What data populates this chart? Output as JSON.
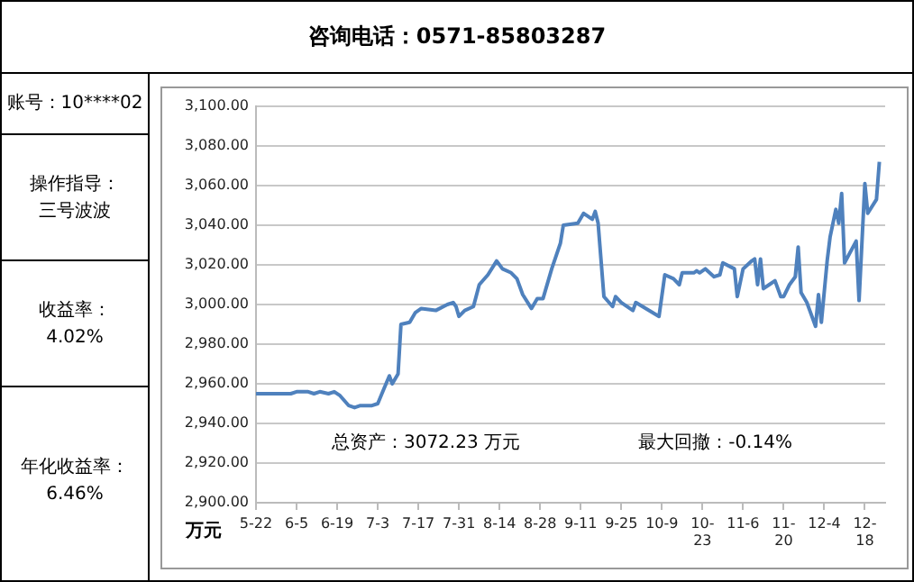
{
  "chart_data": {
    "type": "line",
    "title": "咨询电话：0571-85803287",
    "ylabel": "万元",
    "annotations": [
      "账号：10****02",
      "操作指导：",
      "三号波波",
      "收益率：",
      "4.02%",
      "年化收益率：",
      "6.46%",
      "总资产：3072.23 万元",
      "最大回撤：-0.14%"
    ],
    "x": [
      "--05-22",
      "--06-03",
      "--06-05",
      "--06-09",
      "--06-11",
      "--06-13",
      "--06-16",
      "--06-18",
      "--06-20",
      "--06-23",
      "--06-25",
      "--06-27",
      "--07-01",
      "--07-03",
      "--07-05",
      "--07-07",
      "--07-08",
      "--07-10",
      "--07-11",
      "--07-14",
      "--07-16",
      "--07-18",
      "--07-23",
      "--07-27",
      "--07-29",
      "--07-30",
      "--07-31",
      "--08-02",
      "--08-05",
      "--08-07",
      "--08-10",
      "--08-13",
      "--08-15",
      "--08-18",
      "--08-20",
      "--08-22",
      "--08-25",
      "--08-27",
      "--08-29",
      "--09-01",
      "--09-04",
      "--09-05",
      "--09-10",
      "--09-12",
      "--09-15",
      "--09-16",
      "--09-17",
      "--09-19",
      "--09-22",
      "--09-23",
      "--09-25",
      "--09-29",
      "--09-30",
      "--10-08",
      "--10-10",
      "--10-13",
      "--10-15",
      "--10-16",
      "--10-20",
      "--10-21",
      "--10-22",
      "--10-24",
      "--10-27",
      "--10-29",
      "--10-30",
      "--11-03",
      "--11-04",
      "--11-06",
      "--11-09",
      "--11-10",
      "--11-11",
      "--11-12",
      "--11-13",
      "--11-15",
      "--11-17",
      "--11-19",
      "--11-20",
      "--11-22",
      "--11-24",
      "--11-25",
      "--11-26",
      "--11-28",
      "--11-29",
      "--12-01",
      "--12-02",
      "--12-03",
      "--12-05",
      "--12-06",
      "--12-08",
      "--12-09",
      "--12-10",
      "--12-11",
      "--12-15",
      "--12-16",
      "--12-18",
      "--12-19",
      "--12-22",
      "--12-23"
    ],
    "series": [
      {
        "color": "#4f81bd",
        "values": [
          2955,
          2955,
          2956,
          2956,
          2955,
          2956,
          2955,
          2956,
          2954,
          2949,
          2948,
          2949,
          2949,
          2950,
          2957,
          2964,
          2960,
          2965,
          2990,
          2991,
          2996,
          2998,
          2997,
          3000,
          3001,
          2999,
          2994,
          2997,
          2999,
          3010,
          3015,
          3022,
          3018,
          3016,
          3013,
          3005,
          2998,
          3003,
          3003,
          3018,
          3031,
          3040,
          3041,
          3046,
          3043,
          3047,
          3041,
          3004,
          2999,
          3004,
          3001,
          2997,
          3001,
          2994,
          3015,
          3013,
          3010,
          3016,
          3016,
          3017,
          3016,
          3018,
          3014,
          3015,
          3021,
          3018,
          3004,
          3018,
          3022,
          3023,
          3010,
          3023,
          3008,
          3010,
          3012,
          3004,
          3004,
          3010,
          3014,
          3029,
          3006,
          3001,
          2997,
          2989,
          3005,
          2991,
          3022,
          3034,
          3048,
          3041,
          3056,
          3021,
          3032,
          3002,
          3061,
          3046,
          3053,
          3072
        ]
      }
    ],
    "xlim": [
      "--05-22",
      "--12-25"
    ],
    "xticks": [
      {
        "value": "--05-22",
        "label": "5-22"
      },
      {
        "value": "--06-05",
        "label": "6-5"
      },
      {
        "value": "--06-19",
        "label": "6-19"
      },
      {
        "value": "--07-03",
        "label": "7-3"
      },
      {
        "value": "--07-17",
        "label": "7-17"
      },
      {
        "value": "--07-31",
        "label": "7-31"
      },
      {
        "value": "--08-14",
        "label": "8-14"
      },
      {
        "value": "--08-28",
        "label": "8-28"
      },
      {
        "value": "--09-11",
        "label": "9-11"
      },
      {
        "value": "--09-25",
        "label": "9-25"
      },
      {
        "value": "--10-09",
        "label": "10-9"
      },
      {
        "value": "--10-23",
        "label": "10-23"
      },
      {
        "value": "--11-06",
        "label": "11-6"
      },
      {
        "value": "--11-20",
        "label": "11-20"
      },
      {
        "value": "--12-04",
        "label": "12-4"
      },
      {
        "value": "--12-18",
        "label": "12-18"
      }
    ],
    "ylim": [
      2900,
      3100
    ],
    "yticks": [
      {
        "value": 2900,
        "label": "2,900.00"
      },
      {
        "value": 2920,
        "label": "2,920.00"
      },
      {
        "value": 2940,
        "label": "2,940.00"
      },
      {
        "value": 2960,
        "label": "2,960.00"
      },
      {
        "value": 2980,
        "label": "2,980.00"
      },
      {
        "value": 3000,
        "label": "3,000.00"
      },
      {
        "value": 3020,
        "label": "3,020.00"
      },
      {
        "value": 3040,
        "label": "3,040.00"
      },
      {
        "value": 3060,
        "label": "3,060.00"
      },
      {
        "value": 3080,
        "label": "3,080.00"
      },
      {
        "value": 3100,
        "label": "3,100.00"
      }
    ],
    "grid": "y",
    "legend": false,
    "marker": "none",
    "line_style": "solid"
  }
}
